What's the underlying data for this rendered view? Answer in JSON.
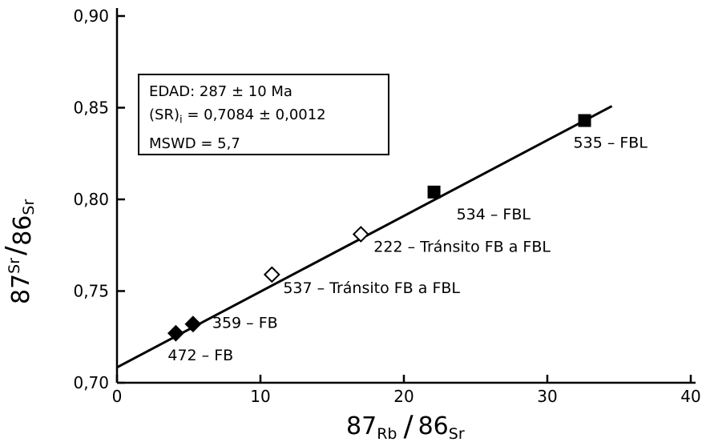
{
  "chart_data": {
    "type": "scatter",
    "xlim": [
      0,
      40
    ],
    "ylim": [
      0.7,
      0.9
    ],
    "x_ticks": [
      "0",
      "10",
      "20",
      "30",
      "40"
    ],
    "y_ticks": [
      "0,70",
      "0,75",
      "0,80",
      "0,85",
      "0,90"
    ],
    "xlabel": {
      "a": "87",
      "a_sub": "Rb",
      "b": "86",
      "b_sub": "Sr"
    },
    "ylabel": {
      "a": "87",
      "a_sub": "Sr",
      "b": "86",
      "b_sub": "Sr"
    },
    "points": [
      {
        "x": 4.1,
        "y": 0.727,
        "marker": "filled-diamond",
        "label": "472 – FB"
      },
      {
        "x": 5.3,
        "y": 0.732,
        "marker": "filled-diamond",
        "label": "359 – FB"
      },
      {
        "x": 10.8,
        "y": 0.759,
        "marker": "open-diamond",
        "label": "537 – Tránsito FB a FBL"
      },
      {
        "x": 17.0,
        "y": 0.781,
        "marker": "open-diamond",
        "label": "222 – Tránsito FB a FBL"
      },
      {
        "x": 22.1,
        "y": 0.804,
        "marker": "filled-square",
        "label": "534 – FBL"
      },
      {
        "x": 32.6,
        "y": 0.843,
        "marker": "filled-square",
        "label": "535 – FBL"
      }
    ],
    "fit_line": {
      "intercept": 0.7084,
      "x_end": 34.5
    }
  },
  "info_box": {
    "line1": "EDAD: 287 ± 10 Ma",
    "line2_prefix": "(SR)",
    "line2_sub": "i",
    "line2_rest": " = 0,7084 ± 0,0012",
    "line3": "MSWD = 5,7"
  }
}
